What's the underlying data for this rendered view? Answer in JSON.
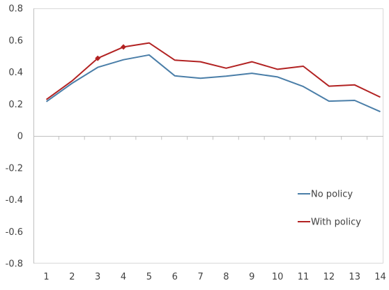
{
  "chart_data": {
    "type": "line",
    "title": "",
    "xlabel": "",
    "ylabel": "",
    "x": [
      1,
      2,
      3,
      4,
      5,
      6,
      7,
      8,
      9,
      10,
      11,
      12,
      13,
      14
    ],
    "ylim": [
      -0.8,
      0.8
    ],
    "yticks": [
      0.8,
      0.6,
      0.4,
      0.2,
      0,
      -0.2,
      -0.4,
      -0.6,
      -0.8
    ],
    "ytick_labels": [
      "0.8",
      "0.6",
      "0.4",
      "0.2",
      "0",
      "-0.2",
      "-0.4",
      "-0.6",
      "-0.8"
    ],
    "xtick_labels": [
      "1",
      "2",
      "3",
      "4",
      "5",
      "6",
      "7",
      "8",
      "9",
      "10",
      "11",
      "12",
      "13",
      "14"
    ],
    "grid": false,
    "legend_position": "lower-right",
    "series": [
      {
        "name": "No policy",
        "color": "#4a7ea8",
        "values": [
          0.215,
          0.33,
          0.43,
          0.478,
          0.508,
          0.377,
          0.362,
          0.375,
          0.393,
          0.37,
          0.31,
          0.218,
          0.223,
          0.152
        ]
      },
      {
        "name": "With policy",
        "color": "#b22222",
        "values": [
          0.228,
          0.345,
          0.487,
          0.558,
          0.583,
          0.475,
          0.465,
          0.425,
          0.465,
          0.418,
          0.437,
          0.312,
          0.32,
          0.243
        ],
        "markers_at": [
          3,
          4
        ]
      }
    ]
  }
}
